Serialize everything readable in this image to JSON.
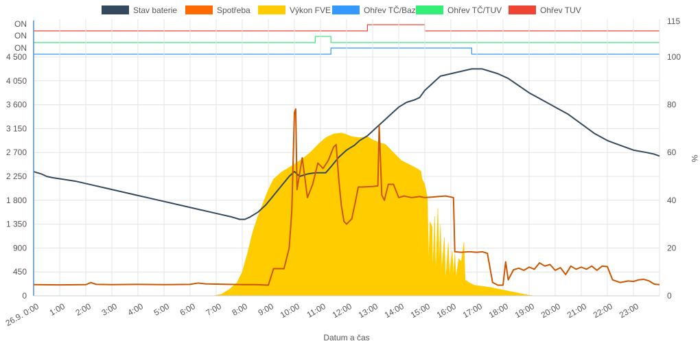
{
  "chart_data": {
    "type": "line",
    "xlabel": "Datum a čas",
    "y2label": "%",
    "x_ticks": [
      "26.9. 0:00",
      "1:00",
      "2:00",
      "3:00",
      "4:00",
      "5:00",
      "6:00",
      "7:00",
      "8:00",
      "9:00",
      "10:00",
      "11:00",
      "12:00",
      "13:00",
      "14:00",
      "15:00",
      "16:00",
      "17:00",
      "18:00",
      "19:00",
      "20:00",
      "21:00",
      "22:00",
      "23:00"
    ],
    "x_range": [
      0,
      24
    ],
    "y_left": {
      "ticks": [
        "0",
        "450",
        "900",
        "1 350",
        "1 800",
        "2 250",
        "2 700",
        "3 150",
        "3 600",
        "4 050",
        "4 500"
      ],
      "range": [
        0,
        4500
      ]
    },
    "y_right": {
      "ticks": [
        "0",
        "20",
        "40",
        "60",
        "80",
        "100",
        "115"
      ],
      "range": [
        0,
        115
      ]
    },
    "status_axis_labels": [
      "ON",
      "ON",
      "ON"
    ],
    "legend": [
      {
        "name": "Stav baterie",
        "color": "#34495e"
      },
      {
        "name": "Spotřeba",
        "color": "#ff6a00"
      },
      {
        "name": "Výkon FVE",
        "color": "#ffcc00"
      },
      {
        "name": "Ohřev TČ/Bazén",
        "color": "#3399ff"
      },
      {
        "name": "Ohřev TČ/TUV",
        "color": "#33ee77"
      },
      {
        "name": "Ohřev TUV",
        "color": "#ee4433"
      }
    ],
    "series": [
      {
        "name": "Výkon FVE",
        "axis": "left",
        "kind": "area",
        "color": "#ffcc00",
        "points": [
          [
            0,
            0
          ],
          [
            6.9,
            0
          ],
          [
            7.2,
            30
          ],
          [
            7.5,
            120
          ],
          [
            7.8,
            250
          ],
          [
            8.0,
            450
          ],
          [
            8.2,
            800
          ],
          [
            8.4,
            1200
          ],
          [
            8.6,
            1500
          ],
          [
            8.8,
            1750
          ],
          [
            9.0,
            2000
          ],
          [
            9.2,
            2200
          ],
          [
            9.5,
            2330
          ],
          [
            9.8,
            2420
          ],
          [
            10.0,
            2480
          ],
          [
            10.3,
            2580
          ],
          [
            10.6,
            2700
          ],
          [
            10.9,
            2850
          ],
          [
            11.2,
            2980
          ],
          [
            11.5,
            3050
          ],
          [
            11.8,
            3070
          ],
          [
            12.0,
            3040
          ],
          [
            12.2,
            3000
          ],
          [
            12.5,
            2980
          ],
          [
            12.8,
            3000
          ],
          [
            13.0,
            2940
          ],
          [
            13.2,
            2900
          ],
          [
            13.5,
            2850
          ],
          [
            13.7,
            2750
          ],
          [
            13.9,
            2650
          ],
          [
            14.1,
            2550
          ],
          [
            14.3,
            2500
          ],
          [
            14.5,
            2450
          ],
          [
            14.7,
            2400
          ],
          [
            14.85,
            2350
          ],
          [
            14.9,
            2200
          ],
          [
            15.0,
            2100
          ],
          [
            15.1,
            1850
          ],
          [
            15.15,
            650
          ],
          [
            15.2,
            1400
          ],
          [
            15.28,
            1300
          ],
          [
            15.3,
            450
          ],
          [
            15.38,
            1500
          ],
          [
            15.42,
            400
          ],
          [
            15.5,
            1650
          ],
          [
            15.55,
            600
          ],
          [
            15.6,
            1350
          ],
          [
            15.65,
            500
          ],
          [
            15.75,
            1100
          ],
          [
            15.8,
            300
          ],
          [
            15.9,
            1000
          ],
          [
            15.95,
            400
          ],
          [
            16.05,
            850
          ],
          [
            16.1,
            400
          ],
          [
            16.15,
            800
          ],
          [
            16.2,
            350
          ],
          [
            16.3,
            700
          ],
          [
            16.4,
            650
          ],
          [
            16.5,
            1010
          ],
          [
            16.55,
            300
          ],
          [
            16.7,
            250
          ],
          [
            16.9,
            200
          ],
          [
            17.2,
            180
          ],
          [
            17.5,
            160
          ],
          [
            17.7,
            140
          ],
          [
            17.9,
            120
          ],
          [
            18.1,
            100
          ],
          [
            18.3,
            80
          ],
          [
            18.5,
            60
          ],
          [
            18.7,
            40
          ],
          [
            18.9,
            20
          ],
          [
            19.2,
            0
          ],
          [
            24,
            0
          ]
        ]
      },
      {
        "name": "Stav baterie",
        "axis": "right",
        "kind": "line",
        "color": "#34495e",
        "points": [
          [
            0,
            52
          ],
          [
            0.3,
            51
          ],
          [
            0.5,
            50
          ],
          [
            0.7,
            49.5
          ],
          [
            1.0,
            49
          ],
          [
            1.3,
            48.5
          ],
          [
            1.6,
            48
          ],
          [
            2.0,
            47
          ],
          [
            2.4,
            46
          ],
          [
            2.8,
            45
          ],
          [
            3.2,
            44
          ],
          [
            3.6,
            43
          ],
          [
            4.0,
            42
          ],
          [
            4.4,
            41
          ],
          [
            4.8,
            40
          ],
          [
            5.2,
            39
          ],
          [
            5.6,
            38
          ],
          [
            6.0,
            37
          ],
          [
            6.4,
            36
          ],
          [
            6.8,
            35
          ],
          [
            7.2,
            34
          ],
          [
            7.6,
            33
          ],
          [
            7.9,
            32
          ],
          [
            8.1,
            32
          ],
          [
            8.3,
            33
          ],
          [
            8.6,
            35
          ],
          [
            8.9,
            38
          ],
          [
            9.2,
            42
          ],
          [
            9.5,
            46
          ],
          [
            9.8,
            50
          ],
          [
            10.0,
            52
          ],
          [
            10.2,
            50
          ],
          [
            10.5,
            51
          ],
          [
            10.8,
            51.5
          ],
          [
            11.2,
            51.5
          ],
          [
            11.4,
            54
          ],
          [
            11.7,
            58
          ],
          [
            12.0,
            61
          ],
          [
            12.3,
            63
          ],
          [
            12.5,
            65
          ],
          [
            12.8,
            67
          ],
          [
            13.1,
            70
          ],
          [
            13.4,
            73
          ],
          [
            13.7,
            76
          ],
          [
            14.0,
            79
          ],
          [
            14.3,
            81
          ],
          [
            14.6,
            82
          ],
          [
            14.8,
            83
          ],
          [
            15.0,
            86
          ],
          [
            15.3,
            89
          ],
          [
            15.6,
            92
          ],
          [
            16.0,
            93
          ],
          [
            16.4,
            94
          ],
          [
            16.8,
            95
          ],
          [
            17.2,
            95
          ],
          [
            17.5,
            94
          ],
          [
            17.8,
            93
          ],
          [
            18.2,
            91
          ],
          [
            18.6,
            88
          ],
          [
            19.0,
            85
          ],
          [
            19.5,
            82
          ],
          [
            20.0,
            79
          ],
          [
            20.5,
            76
          ],
          [
            21.0,
            72
          ],
          [
            21.5,
            68
          ],
          [
            22.0,
            65
          ],
          [
            22.5,
            63
          ],
          [
            23.0,
            61
          ],
          [
            23.5,
            60
          ],
          [
            23.8,
            59.3
          ],
          [
            24.0,
            58.5
          ]
        ]
      },
      {
        "name": "Spotřeba",
        "axis": "left",
        "kind": "line",
        "color": "#ff6a00",
        "points": [
          [
            0,
            210
          ],
          [
            1.0,
            205
          ],
          [
            2.0,
            210
          ],
          [
            2.2,
            250
          ],
          [
            2.4,
            215
          ],
          [
            3.0,
            210
          ],
          [
            4.0,
            215
          ],
          [
            5.0,
            210
          ],
          [
            6.0,
            215
          ],
          [
            6.3,
            240
          ],
          [
            6.6,
            225
          ],
          [
            7.0,
            220
          ],
          [
            7.5,
            215
          ],
          [
            8.0,
            210
          ],
          [
            8.5,
            210
          ],
          [
            9.0,
            200
          ],
          [
            9.2,
            510
          ],
          [
            9.6,
            510
          ],
          [
            9.8,
            900
          ],
          [
            9.9,
            1600
          ],
          [
            10.0,
            3450
          ],
          [
            10.05,
            3520
          ],
          [
            10.1,
            2000
          ],
          [
            10.3,
            2600
          ],
          [
            10.5,
            1850
          ],
          [
            10.7,
            2100
          ],
          [
            10.9,
            2500
          ],
          [
            11.1,
            2400
          ],
          [
            11.3,
            2550
          ],
          [
            11.5,
            2800
          ],
          [
            11.6,
            2850
          ],
          [
            11.7,
            2200
          ],
          [
            11.8,
            1700
          ],
          [
            11.9,
            1400
          ],
          [
            12.0,
            1350
          ],
          [
            12.2,
            1450
          ],
          [
            12.35,
            1800
          ],
          [
            12.45,
            2050
          ],
          [
            12.6,
            2050
          ],
          [
            13.0,
            2060
          ],
          [
            13.2,
            2070
          ],
          [
            13.25,
            3200
          ],
          [
            13.35,
            1900
          ],
          [
            13.45,
            1800
          ],
          [
            13.6,
            2100
          ],
          [
            13.8,
            2100
          ],
          [
            14.0,
            1850
          ],
          [
            14.2,
            1880
          ],
          [
            14.5,
            1850
          ],
          [
            14.8,
            1870
          ],
          [
            15.0,
            1850
          ],
          [
            15.3,
            1860
          ],
          [
            15.5,
            1870
          ],
          [
            15.8,
            1880
          ],
          [
            16.0,
            1860
          ],
          [
            16.1,
            1850
          ],
          [
            16.15,
            830
          ],
          [
            16.4,
            820
          ],
          [
            16.7,
            830
          ],
          [
            17.0,
            820
          ],
          [
            17.2,
            830
          ],
          [
            17.4,
            800
          ],
          [
            17.6,
            250
          ],
          [
            17.8,
            200
          ],
          [
            18.0,
            200
          ],
          [
            18.1,
            640
          ],
          [
            18.2,
            300
          ],
          [
            18.4,
            490
          ],
          [
            18.6,
            520
          ],
          [
            18.8,
            480
          ],
          [
            19.0,
            540
          ],
          [
            19.2,
            500
          ],
          [
            19.4,
            620
          ],
          [
            19.6,
            560
          ],
          [
            19.8,
            590
          ],
          [
            20.0,
            480
          ],
          [
            20.2,
            530
          ],
          [
            20.4,
            400
          ],
          [
            20.6,
            560
          ],
          [
            20.8,
            500
          ],
          [
            21.0,
            540
          ],
          [
            21.2,
            500
          ],
          [
            21.4,
            560
          ],
          [
            21.6,
            480
          ],
          [
            21.8,
            560
          ],
          [
            22.0,
            550
          ],
          [
            22.2,
            300
          ],
          [
            22.5,
            250
          ],
          [
            22.8,
            280
          ],
          [
            23.0,
            270
          ],
          [
            23.2,
            300
          ],
          [
            23.4,
            310
          ],
          [
            23.6,
            280
          ],
          [
            23.8,
            220
          ],
          [
            24.0,
            210
          ]
        ]
      },
      {
        "name": "Ohřev TČ/Bazén",
        "axis": "status",
        "kind": "step",
        "color": "#3399ff",
        "on_intervals": [
          [
            11.4,
            16.8
          ]
        ]
      },
      {
        "name": "Ohřev TČ/TUV",
        "axis": "status",
        "kind": "step",
        "color": "#33ee77",
        "on_intervals": [
          [
            10.8,
            11.4
          ]
        ]
      },
      {
        "name": "Ohřev TUV",
        "axis": "status",
        "kind": "step",
        "color": "#ee4433",
        "on_intervals": [
          [
            12.8,
            15.0
          ]
        ]
      }
    ]
  }
}
